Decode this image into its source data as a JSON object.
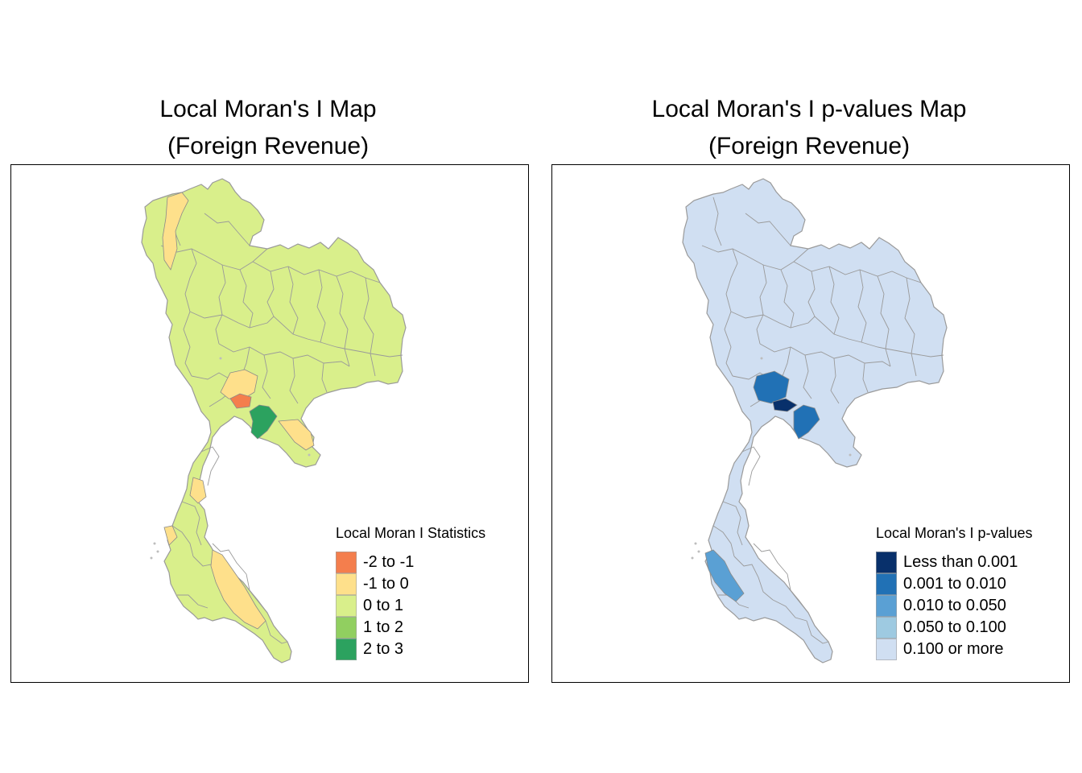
{
  "panels": [
    {
      "title_line1": "Local Moran's I Map",
      "title_line2": "(Foreign Revenue)",
      "base_fill": "#d9ef8b",
      "legend": {
        "title": "Local Moran I Statistics",
        "items": [
          {
            "label": "-2 to -1",
            "color": "#f47e4d"
          },
          {
            "label": "-1 to 0",
            "color": "#fee08b"
          },
          {
            "label": "0 to 1",
            "color": "#d9ef8b"
          },
          {
            "label": "1 to 2",
            "color": "#91cf60"
          },
          {
            "label": "2 to 3",
            "color": "#2ca25f"
          }
        ]
      }
    },
    {
      "title_line1": "Local Moran's I p-values Map",
      "title_line2": "(Foreign Revenue)",
      "base_fill": "#d0dff2",
      "legend": {
        "title": "Local Moran's I p-values",
        "items": [
          {
            "label": "Less than 0.001",
            "color": "#08306b"
          },
          {
            "label": "0.001 to 0.010",
            "color": "#2171b5"
          },
          {
            "label": "0.010 to 0.050",
            "color": "#5aa0d4"
          },
          {
            "label": "0.050 to 0.100",
            "color": "#9ecae1"
          },
          {
            "label": "0.100 or more",
            "color": "#d0dff2"
          }
        ]
      }
    }
  ]
}
